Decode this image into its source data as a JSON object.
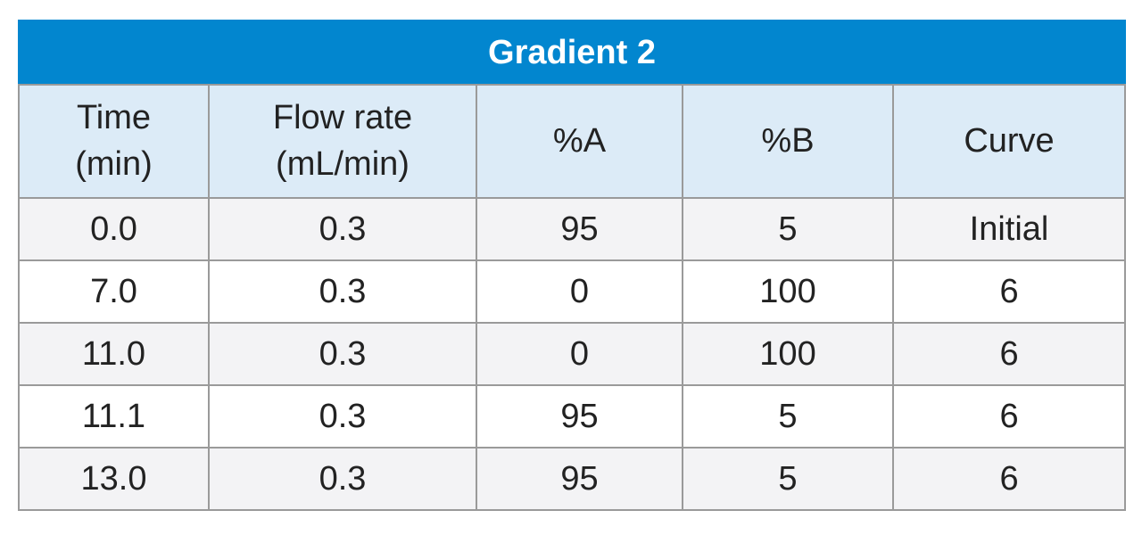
{
  "table": {
    "title": "Gradient 2",
    "columns": [
      {
        "line1": "Time",
        "line2": "(min)"
      },
      {
        "line1": "Flow rate",
        "line2": "(mL/min)"
      },
      {
        "line1": "%A",
        "line2": ""
      },
      {
        "line1": "%B",
        "line2": ""
      },
      {
        "line1": "Curve",
        "line2": ""
      }
    ],
    "rows": [
      [
        "0.0",
        "0.3",
        "95",
        "5",
        "Initial"
      ],
      [
        "7.0",
        "0.3",
        "0",
        "100",
        "6"
      ],
      [
        "11.0",
        "0.3",
        "0",
        "100",
        "6"
      ],
      [
        "11.1",
        "0.3",
        "95",
        "5",
        "6"
      ],
      [
        "13.0",
        "0.3",
        "95",
        "5",
        "6"
      ]
    ]
  },
  "colors": {
    "title_bg": "#0286cf",
    "header_bg": "#dcebf7",
    "row_alt_bg": "#f3f3f5",
    "border": "#9a9a9a"
  }
}
